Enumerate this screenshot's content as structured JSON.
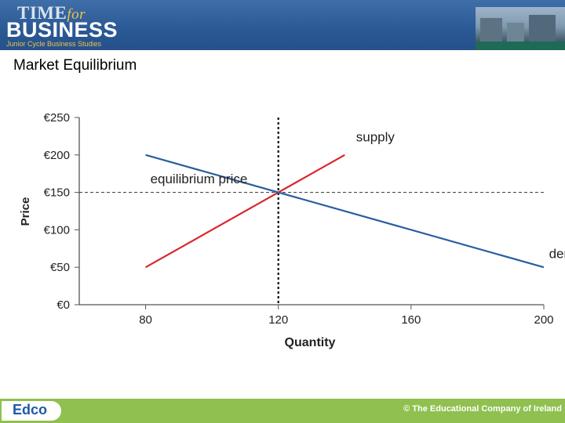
{
  "header": {
    "brand_line1": "TIME",
    "brand_for": "for",
    "brand_line2": "BUSINESS",
    "brand_line3": "Junior Cycle Business Studies"
  },
  "page_title": "Market Equilibrium",
  "footer": {
    "logo": "Edco",
    "copyright": "© The Educational Company of Ireland"
  },
  "colors": {
    "supply": "#d9262e",
    "demand": "#2a5fa0",
    "footer": "#8fc050",
    "banner": "#2c5a96"
  },
  "chart_data": {
    "type": "line",
    "xlabel": "Quantity",
    "ylabel": "Price",
    "xlim": [
      60,
      200
    ],
    "ylim": [
      0,
      250
    ],
    "x_ticks": [
      80,
      120,
      160,
      200
    ],
    "x_tick_labels": [
      "80",
      "120",
      "160",
      "200"
    ],
    "y_ticks": [
      0,
      50,
      100,
      150,
      200,
      250
    ],
    "y_tick_labels": [
      "€0",
      "€50",
      "€100",
      "€150",
      "€200",
      "€250"
    ],
    "series": [
      {
        "name": "supply",
        "color": "#d9262e",
        "x": [
          80,
          140
        ],
        "y": [
          50,
          200
        ]
      },
      {
        "name": "demand",
        "color": "#2a5fa0",
        "x": [
          80,
          200
        ],
        "y": [
          200,
          50
        ]
      }
    ],
    "reference_lines": [
      {
        "orientation": "horizontal",
        "value": 150,
        "style": "dashed"
      },
      {
        "orientation": "vertical",
        "value": 120,
        "style": "dotted"
      }
    ],
    "annotations": [
      {
        "text": "equilibrium price",
        "x": 80,
        "y": 162
      },
      {
        "text": "supply",
        "x": 142,
        "y": 218
      },
      {
        "text": "demand",
        "x": 200,
        "y": 62
      }
    ],
    "grid": false
  }
}
